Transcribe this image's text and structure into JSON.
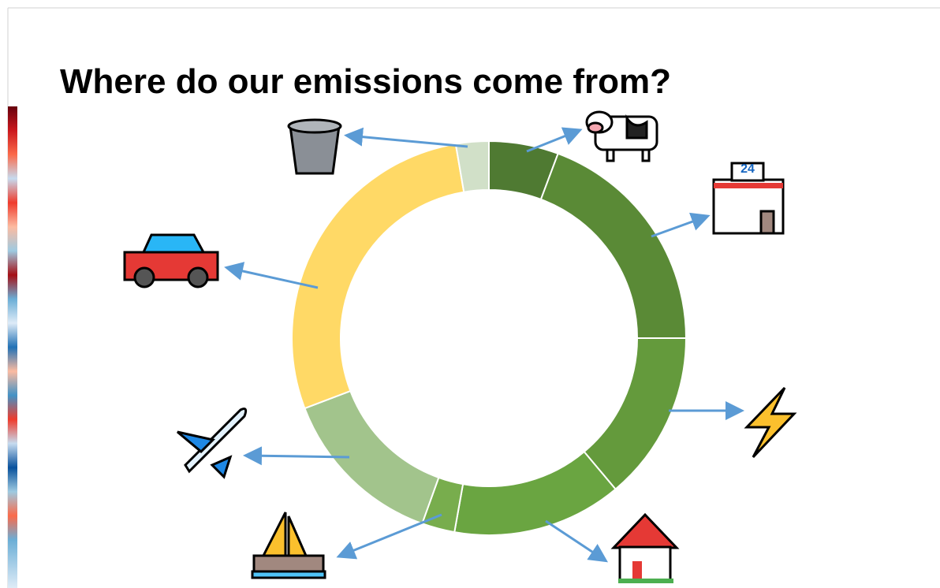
{
  "chart_data": {
    "type": "pie",
    "title": "Where do our emissions come from?",
    "categories": [
      null,
      null,
      null,
      null,
      null,
      null,
      null,
      null
    ],
    "values": [
      5.7,
      19.3,
      13.9,
      13.9,
      2.7,
      13.7,
      28.1,
      2.7
    ],
    "colors": [
      "#4f7a32",
      "#5a8a36",
      "#649a3c",
      "#6aa541",
      "#78ad4d",
      "#a2c48c",
      "#ffd966",
      "#d1e0c8"
    ],
    "donut": true
  }
}
